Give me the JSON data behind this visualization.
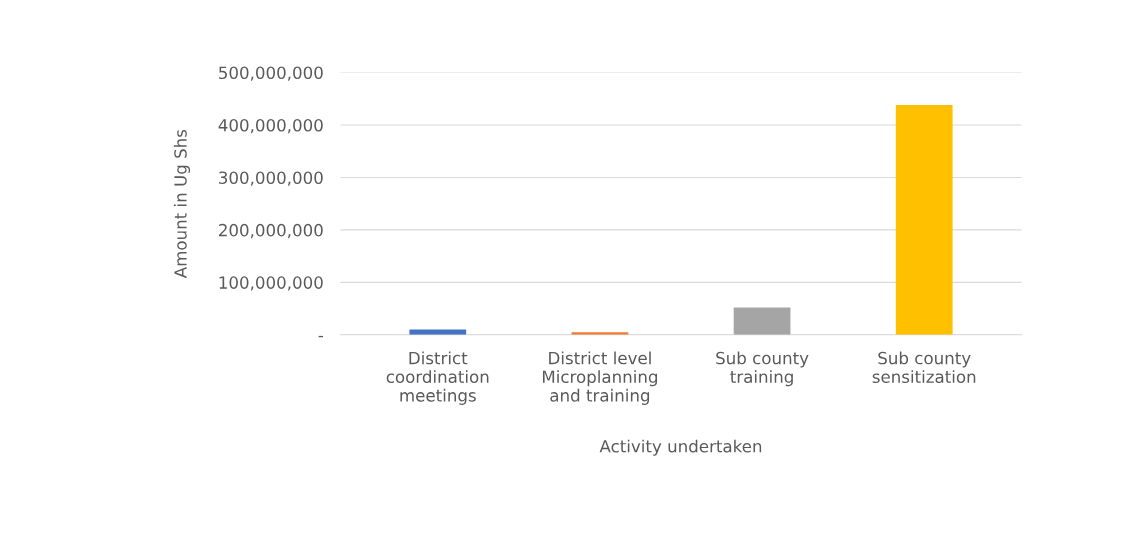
{
  "chart_data": {
    "type": "bar",
    "categories": [
      "District\ncoordination\nmeetings",
      "District level\nMicroplanning\nand training",
      "Sub county\ntraining",
      "Sub county\nsensitization"
    ],
    "values": [
      10000000,
      5000000,
      52000000,
      438000000
    ],
    "colors": [
      "#4472c4",
      "#ed7d31",
      "#a5a5a5",
      "#ffc000"
    ],
    "xlabel": "Activity undertaken",
    "ylabel": "Amount in Ug Shs",
    "ylim": [
      0,
      500000000
    ],
    "yticks": [
      {
        "value": 0,
        "label": "-"
      },
      {
        "value": 100000000,
        "label": "100,000,000"
      },
      {
        "value": 200000000,
        "label": "200,000,000"
      },
      {
        "value": 300000000,
        "label": "300,000,000"
      },
      {
        "value": 400000000,
        "label": "400,000,000"
      },
      {
        "value": 500000000,
        "label": "500,000,000"
      }
    ],
    "grid": "y"
  }
}
